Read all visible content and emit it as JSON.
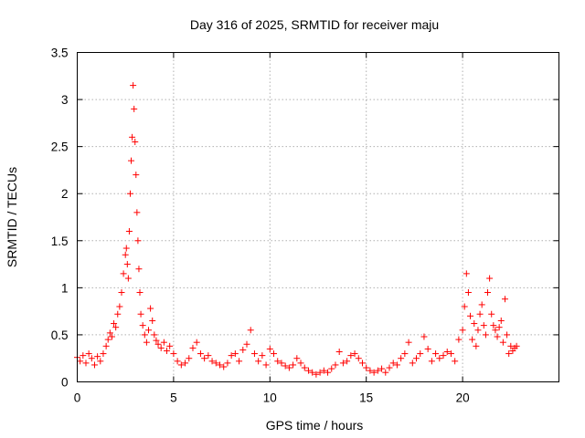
{
  "chart_data": {
    "type": "scatter",
    "title": "Day 316 of 2025, SRMTID for receiver maju",
    "xlabel": "GPS time / hours",
    "ylabel": "SRMTID / TECUs",
    "xlim": [
      0,
      25
    ],
    "ylim": [
      0,
      3.5
    ],
    "x_ticks": [
      0,
      5,
      10,
      15,
      20
    ],
    "x_tick_labels": [
      "0",
      "5",
      "10",
      "15",
      "20"
    ],
    "y_ticks": [
      0,
      0.5,
      1,
      1.5,
      2,
      2.5,
      3,
      3.5
    ],
    "y_tick_labels": [
      "0",
      "0.5",
      "1",
      "1.5",
      "2",
      "2.5",
      "3",
      "3.5"
    ],
    "grid": true,
    "marker": "plus",
    "marker_color": "#ff0000",
    "series": [
      {
        "name": "SRMTID",
        "points": [
          [
            0.0,
            0.26
          ],
          [
            0.15,
            0.22
          ],
          [
            0.3,
            0.28
          ],
          [
            0.45,
            0.2
          ],
          [
            0.6,
            0.3
          ],
          [
            0.75,
            0.25
          ],
          [
            0.9,
            0.18
          ],
          [
            1.05,
            0.27
          ],
          [
            1.2,
            0.22
          ],
          [
            1.35,
            0.3
          ],
          [
            1.5,
            0.38
          ],
          [
            1.6,
            0.45
          ],
          [
            1.7,
            0.52
          ],
          [
            1.8,
            0.48
          ],
          [
            1.9,
            0.62
          ],
          [
            2.0,
            0.58
          ],
          [
            2.1,
            0.72
          ],
          [
            2.2,
            0.8
          ],
          [
            2.3,
            0.95
          ],
          [
            2.4,
            1.15
          ],
          [
            2.5,
            1.35
          ],
          [
            2.55,
            1.42
          ],
          [
            2.6,
            1.25
          ],
          [
            2.65,
            1.1
          ],
          [
            2.7,
            1.6
          ],
          [
            2.75,
            2.0
          ],
          [
            2.8,
            2.35
          ],
          [
            2.85,
            2.6
          ],
          [
            2.9,
            3.15
          ],
          [
            2.95,
            2.9
          ],
          [
            3.0,
            2.55
          ],
          [
            3.05,
            2.2
          ],
          [
            3.1,
            1.8
          ],
          [
            3.15,
            1.5
          ],
          [
            3.2,
            1.2
          ],
          [
            3.25,
            0.95
          ],
          [
            3.3,
            0.72
          ],
          [
            3.4,
            0.6
          ],
          [
            3.5,
            0.5
          ],
          [
            3.6,
            0.42
          ],
          [
            3.7,
            0.55
          ],
          [
            3.8,
            0.78
          ],
          [
            3.9,
            0.65
          ],
          [
            4.0,
            0.5
          ],
          [
            4.1,
            0.44
          ],
          [
            4.2,
            0.4
          ],
          [
            4.35,
            0.36
          ],
          [
            4.5,
            0.42
          ],
          [
            4.65,
            0.33
          ],
          [
            4.8,
            0.38
          ],
          [
            5.0,
            0.3
          ],
          [
            5.2,
            0.22
          ],
          [
            5.4,
            0.18
          ],
          [
            5.6,
            0.2
          ],
          [
            5.8,
            0.25
          ],
          [
            6.0,
            0.36
          ],
          [
            6.2,
            0.42
          ],
          [
            6.4,
            0.3
          ],
          [
            6.6,
            0.25
          ],
          [
            6.8,
            0.28
          ],
          [
            7.0,
            0.22
          ],
          [
            7.2,
            0.2
          ],
          [
            7.4,
            0.18
          ],
          [
            7.6,
            0.16
          ],
          [
            7.8,
            0.2
          ],
          [
            8.0,
            0.28
          ],
          [
            8.2,
            0.3
          ],
          [
            8.4,
            0.22
          ],
          [
            8.6,
            0.34
          ],
          [
            8.8,
            0.4
          ],
          [
            9.0,
            0.55
          ],
          [
            9.2,
            0.3
          ],
          [
            9.4,
            0.22
          ],
          [
            9.6,
            0.28
          ],
          [
            9.8,
            0.18
          ],
          [
            10.0,
            0.35
          ],
          [
            10.2,
            0.3
          ],
          [
            10.4,
            0.22
          ],
          [
            10.6,
            0.2
          ],
          [
            10.8,
            0.17
          ],
          [
            11.0,
            0.15
          ],
          [
            11.2,
            0.18
          ],
          [
            11.4,
            0.25
          ],
          [
            11.6,
            0.2
          ],
          [
            11.8,
            0.15
          ],
          [
            12.0,
            0.12
          ],
          [
            12.2,
            0.1
          ],
          [
            12.4,
            0.08
          ],
          [
            12.6,
            0.1
          ],
          [
            12.8,
            0.12
          ],
          [
            13.0,
            0.1
          ],
          [
            13.2,
            0.14
          ],
          [
            13.4,
            0.18
          ],
          [
            13.6,
            0.32
          ],
          [
            13.8,
            0.2
          ],
          [
            14.0,
            0.22
          ],
          [
            14.2,
            0.28
          ],
          [
            14.4,
            0.3
          ],
          [
            14.6,
            0.25
          ],
          [
            14.8,
            0.2
          ],
          [
            15.0,
            0.15
          ],
          [
            15.2,
            0.12
          ],
          [
            15.4,
            0.1
          ],
          [
            15.6,
            0.12
          ],
          [
            15.8,
            0.14
          ],
          [
            16.0,
            0.1
          ],
          [
            16.2,
            0.15
          ],
          [
            16.4,
            0.2
          ],
          [
            16.6,
            0.18
          ],
          [
            16.8,
            0.25
          ],
          [
            17.0,
            0.3
          ],
          [
            17.2,
            0.42
          ],
          [
            17.4,
            0.2
          ],
          [
            17.6,
            0.25
          ],
          [
            17.8,
            0.3
          ],
          [
            18.0,
            0.48
          ],
          [
            18.2,
            0.35
          ],
          [
            18.4,
            0.22
          ],
          [
            18.6,
            0.3
          ],
          [
            18.8,
            0.25
          ],
          [
            19.0,
            0.28
          ],
          [
            19.2,
            0.32
          ],
          [
            19.4,
            0.3
          ],
          [
            19.6,
            0.22
          ],
          [
            19.8,
            0.45
          ],
          [
            20.0,
            0.55
          ],
          [
            20.1,
            0.8
          ],
          [
            20.2,
            1.15
          ],
          [
            20.3,
            0.95
          ],
          [
            20.4,
            0.7
          ],
          [
            20.5,
            0.45
          ],
          [
            20.6,
            0.62
          ],
          [
            20.7,
            0.38
          ],
          [
            20.8,
            0.55
          ],
          [
            20.9,
            0.72
          ],
          [
            21.0,
            0.82
          ],
          [
            21.1,
            0.6
          ],
          [
            21.2,
            0.5
          ],
          [
            21.3,
            0.95
          ],
          [
            21.4,
            1.1
          ],
          [
            21.5,
            0.72
          ],
          [
            21.6,
            0.6
          ],
          [
            21.7,
            0.55
          ],
          [
            21.8,
            0.48
          ],
          [
            21.9,
            0.58
          ],
          [
            22.0,
            0.65
          ],
          [
            22.1,
            0.42
          ],
          [
            22.2,
            0.88
          ],
          [
            22.3,
            0.5
          ],
          [
            22.4,
            0.3
          ],
          [
            22.5,
            0.38
          ],
          [
            22.6,
            0.33
          ],
          [
            22.7,
            0.36
          ],
          [
            22.8,
            0.38
          ]
        ]
      }
    ]
  }
}
